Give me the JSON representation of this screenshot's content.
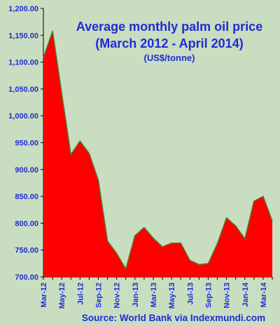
{
  "chart_data": {
    "type": "area",
    "title_lines": [
      "Average monthly palm oil price",
      "(March 2012 - April 2014)"
    ],
    "subtitle": "(US$/tonne)",
    "source": "Source: World Bank via Indexmundi.com",
    "x": [
      "Mar-12",
      "Apr-12",
      "May-12",
      "Jun-12",
      "Jul-12",
      "Aug-12",
      "Sep-12",
      "Oct-12",
      "Nov-12",
      "Dec-12",
      "Jan-13",
      "Feb-13",
      "Mar-13",
      "Apr-13",
      "May-13",
      "Jun-13",
      "Jul-13",
      "Aug-13",
      "Sep-13",
      "Oct-13",
      "Nov-13",
      "Dec-13",
      "Jan-14",
      "Feb-14",
      "Mar-14",
      "Apr-14"
    ],
    "x_tick_labels": [
      "Mar-12",
      "May-12",
      "Jul-12",
      "Sep-12",
      "Nov-12",
      "Jan-13",
      "Mar-13",
      "May-13",
      "Jul-13",
      "Sep-13",
      "Nov-13",
      "Jan-14",
      "Mar-14"
    ],
    "values": [
      1108,
      1158,
      1042,
      928,
      953,
      930,
      880,
      767,
      744,
      715,
      777,
      792,
      772,
      756,
      763,
      763,
      731,
      723,
      725,
      762,
      810,
      795,
      771,
      841,
      850,
      804
    ],
    "ylim": [
      700,
      1200
    ],
    "y_ticks": [
      700,
      750,
      800,
      850,
      900,
      950,
      1000,
      1050,
      1100,
      1150,
      1200
    ],
    "y_tick_labels": [
      "700.00",
      "750.00",
      "800.00",
      "850.00",
      "900.00",
      "950.00",
      "1,000.00",
      "1,050.00",
      "1,100.00",
      "1,150.00",
      "1,200.00"
    ],
    "fill_color": "#ff0000",
    "line_color": "#4f7a2a",
    "text_color": "#1f2bd6",
    "grid": false,
    "legend": "none"
  }
}
